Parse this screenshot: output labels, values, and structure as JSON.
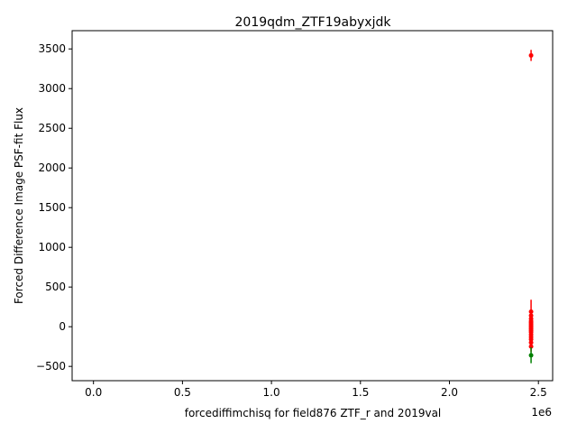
{
  "chart_data": {
    "type": "scatter",
    "title": "2019qdm_ZTF19abyxjdk",
    "xlabel": "forcediffimchisq for field876 ZTF_r and 2019val",
    "ylabel": "Forced Difference Image PSF-fit Flux",
    "x_offset_label": "1e6",
    "xlim": [
      -120000,
      2580000
    ],
    "ylim": [
      -680,
      3730
    ],
    "x_ticks": [
      0.0,
      0.5,
      1.0,
      1.5,
      2.0,
      2.5
    ],
    "x_tick_labels": [
      "0.0",
      "0.5",
      "1.0",
      "1.5",
      "2.0",
      "2.5"
    ],
    "y_ticks": [
      -500,
      0,
      500,
      1000,
      1500,
      2000,
      2500,
      3000,
      3500
    ],
    "y_tick_labels": [
      "−500",
      "0",
      "500",
      "1000",
      "1500",
      "2000",
      "2500",
      "3000",
      "3500"
    ],
    "grid": false,
    "colors": {
      "red_series": "#ff0000",
      "green_series": "#008000"
    },
    "series": [
      {
        "color": "#ff0000",
        "points": [
          {
            "x": 2458740,
            "y": 3418,
            "err": 70
          },
          {
            "x": 2458742,
            "y": 190,
            "err": 150
          },
          {
            "x": 2458744,
            "y": 140,
            "err": 60
          },
          {
            "x": 2458746,
            "y": 100,
            "err": 60
          },
          {
            "x": 2458748,
            "y": 70,
            "err": 55
          },
          {
            "x": 2458750,
            "y": 50,
            "err": 55
          },
          {
            "x": 2458752,
            "y": 30,
            "err": 55
          },
          {
            "x": 2458754,
            "y": 10,
            "err": 55
          },
          {
            "x": 2458756,
            "y": -10,
            "err": 55
          },
          {
            "x": 2458758,
            "y": -30,
            "err": 55
          },
          {
            "x": 2458760,
            "y": -50,
            "err": 55
          },
          {
            "x": 2458762,
            "y": -70,
            "err": 55
          },
          {
            "x": 2458764,
            "y": -100,
            "err": 60
          },
          {
            "x": 2458766,
            "y": -130,
            "err": 60
          },
          {
            "x": 2458768,
            "y": -160,
            "err": 60
          },
          {
            "x": 2458770,
            "y": -200,
            "err": 65
          },
          {
            "x": 2458772,
            "y": -250,
            "err": 65
          }
        ]
      },
      {
        "color": "#008000",
        "points": [
          {
            "x": 2458745,
            "y": -360,
            "err": 100
          }
        ]
      }
    ]
  }
}
